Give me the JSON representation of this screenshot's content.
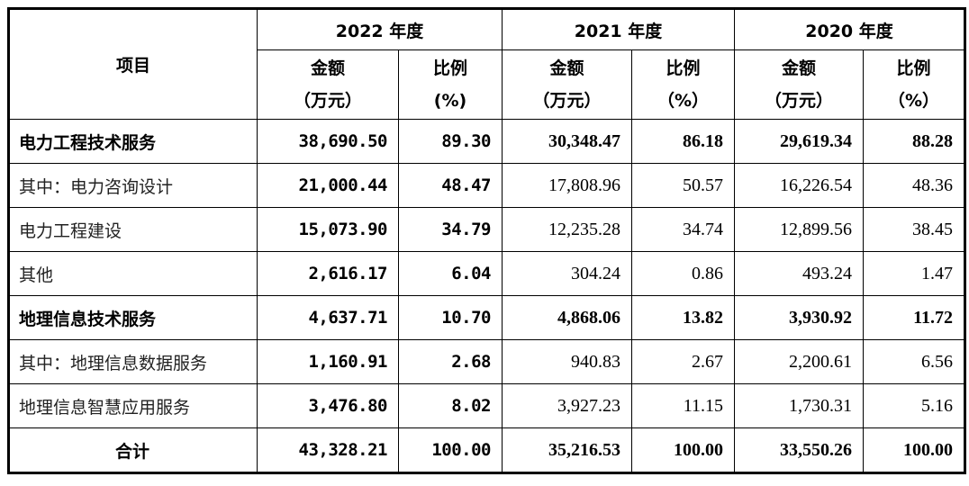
{
  "header": {
    "item": "项目",
    "years": [
      "2022 年度",
      "2021 年度",
      "2020 年度"
    ],
    "amount": "金额",
    "amount_unit": "（万元）",
    "ratio": "比例",
    "ratio_unit_2022": "(%)",
    "ratio_unit": "（%）"
  },
  "rows": [
    {
      "label": "电力工程技术服务",
      "bold": true,
      "v": [
        "38,690.50",
        "89.30",
        "30,348.47",
        "86.18",
        "29,619.34",
        "88.28"
      ]
    },
    {
      "label": "其中：电力咨询设计",
      "bold": false,
      "v": [
        "21,000.44",
        "48.47",
        "17,808.96",
        "50.57",
        "16,226.54",
        "48.36"
      ]
    },
    {
      "label": "电力工程建设",
      "bold": false,
      "v": [
        "15,073.90",
        "34.79",
        "12,235.28",
        "34.74",
        "12,899.56",
        "38.45"
      ]
    },
    {
      "label": "其他",
      "bold": false,
      "v": [
        "2,616.17",
        "6.04",
        "304.24",
        "0.86",
        "493.24",
        "1.47"
      ]
    },
    {
      "label": "地理信息技术服务",
      "bold": true,
      "v": [
        "4,637.71",
        "10.70",
        "4,868.06",
        "13.82",
        "3,930.92",
        "11.72"
      ]
    },
    {
      "label": "其中：地理信息数据服务",
      "bold": false,
      "v": [
        "1,160.91",
        "2.68",
        "940.83",
        "2.67",
        "2,200.61",
        "6.56"
      ]
    },
    {
      "label": "地理信息智慧应用服务",
      "bold": false,
      "v": [
        "3,476.80",
        "8.02",
        "3,927.23",
        "11.15",
        "1,730.31",
        "5.16"
      ]
    },
    {
      "label": "合计",
      "bold": true,
      "total": true,
      "v": [
        "43,328.21",
        "100.00",
        "35,216.53",
        "100.00",
        "33,550.26",
        "100.00"
      ]
    }
  ]
}
